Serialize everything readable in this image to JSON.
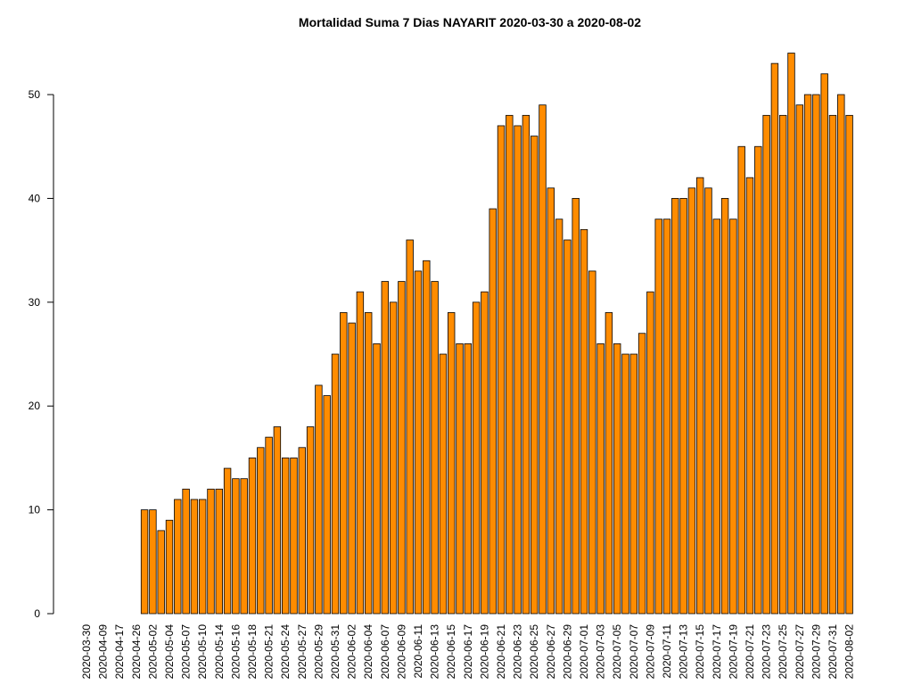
{
  "chart_data": {
    "type": "bar",
    "title": "Mortalidad Suma 7 Dias NAYARIT 2020-03-30 a 2020-08-02",
    "categories": [
      "2020-03-30",
      null,
      "2020-04-09",
      null,
      "2020-04-17",
      null,
      "2020-04-26",
      null,
      "2020-05-02",
      null,
      "2020-05-04",
      null,
      "2020-05-07",
      null,
      "2020-05-10",
      null,
      "2020-05-14",
      null,
      "2020-05-16",
      null,
      "2020-05-18",
      null,
      "2020-05-21",
      null,
      "2020-05-24",
      null,
      "2020-05-27",
      null,
      "2020-05-29",
      null,
      "2020-05-31",
      null,
      "2020-06-02",
      null,
      "2020-06-04",
      null,
      "2020-06-07",
      null,
      "2020-06-09",
      null,
      "2020-06-11",
      null,
      "2020-06-13",
      null,
      "2020-06-15",
      null,
      "2020-06-17",
      null,
      "2020-06-19",
      null,
      "2020-06-21",
      null,
      "2020-06-23",
      null,
      "2020-06-25",
      null,
      "2020-06-27",
      null,
      "2020-06-29",
      null,
      "2020-07-01",
      null,
      "2020-07-03",
      null,
      "2020-07-05",
      null,
      "2020-07-07",
      null,
      "2020-07-09",
      null,
      "2020-07-11",
      null,
      "2020-07-13",
      null,
      "2020-07-15",
      null,
      "2020-07-17",
      null,
      "2020-07-19",
      null,
      "2020-07-21",
      null,
      "2020-07-23",
      null,
      "2020-07-25",
      null,
      "2020-07-27",
      null,
      "2020-07-29",
      null,
      "2020-07-31",
      null,
      "2020-08-02"
    ],
    "values": [
      0,
      0,
      0,
      0,
      0,
      0,
      0,
      10,
      10,
      8,
      9,
      11,
      12,
      11,
      11,
      12,
      12,
      14,
      13,
      13,
      15,
      16,
      17,
      18,
      15,
      15,
      16,
      18,
      22,
      21,
      25,
      29,
      28,
      31,
      29,
      26,
      32,
      30,
      32,
      36,
      33,
      34,
      32,
      25,
      29,
      26,
      26,
      30,
      31,
      39,
      47,
      48,
      47,
      48,
      46,
      49,
      41,
      38,
      36,
      40,
      37,
      33,
      26,
      29,
      26,
      25,
      25,
      27,
      31,
      38,
      38,
      40,
      40,
      41,
      42,
      41,
      38,
      40,
      38,
      45,
      42,
      45,
      48,
      53,
      48,
      54,
      49,
      50,
      50,
      52,
      48,
      50,
      48
    ],
    "color": "#ff8c00",
    "ylim": [
      0,
      54
    ],
    "yticks": [
      0,
      10,
      20,
      30,
      40,
      50
    ]
  }
}
